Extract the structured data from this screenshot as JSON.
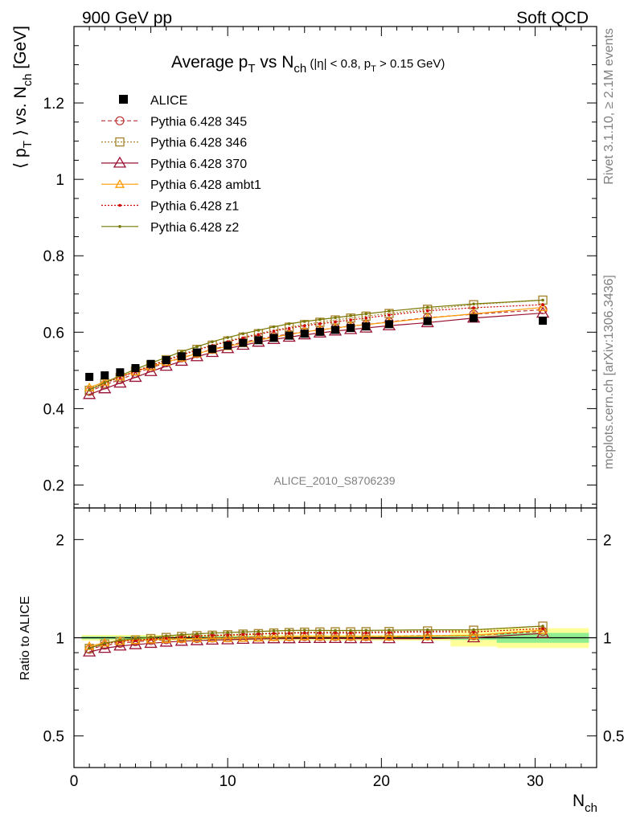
{
  "header": {
    "left": "900 GeV pp",
    "right": "Soft QCD"
  },
  "side": {
    "rivet": "Rivet 3.1.10, ≥ 2.1M events",
    "mcplots": "mcplots.cern.ch [arXiv:1306.3436]"
  },
  "colors": {
    "alice": "#000000",
    "p345": "#bb3333",
    "p346": "#aa8833",
    "p370": "#991133",
    "ambt1": "#ff9900",
    "z1": "#cc0000",
    "z2": "#777700",
    "band_inner": "#90ee90",
    "band_outer": "#ffff99"
  },
  "chart_data": {
    "type": "line",
    "title": {
      "main": "Average p",
      "sub1": "T",
      "mid": " vs N",
      "sub2": "ch",
      "cut_a": " (|η| < 0.8, p",
      "cut_sub": "T",
      "cut_b": " > 0.15 GeV)"
    },
    "ylabel": {
      "a": "⟨ p",
      "sub1": "T",
      "b": " ⟩ vs. N",
      "sub2": "ch",
      "c": " [GeV]"
    },
    "xlabel": {
      "a": "N",
      "sub": "ch"
    },
    "ratio_ylabel": "Ratio to ALICE",
    "watermark": "ALICE_2010_S8706239",
    "xlim": [
      0,
      34
    ],
    "ylim": [
      0.14,
      1.4
    ],
    "ratio_ylim": [
      0.4,
      2.5
    ],
    "xticks": [
      0,
      10,
      20,
      30
    ],
    "yticks": [
      0.2,
      0.4,
      0.6,
      0.8,
      1,
      1.2
    ],
    "ytick_labels": [
      "0.2",
      "0.4",
      "0.6",
      "0.8",
      "1",
      "1.2"
    ],
    "ratio_yticks": [
      0.5,
      1,
      2
    ],
    "ratio_ytick_labels": [
      "0.5",
      "1",
      "2"
    ],
    "legend_position": "top-left",
    "x": [
      1,
      2,
      3,
      4,
      5,
      6,
      7,
      8,
      9,
      10,
      11,
      12,
      13,
      14,
      15,
      16,
      17,
      18,
      19,
      20.5,
      23,
      26,
      30.5
    ],
    "alice": [
      0.483,
      0.487,
      0.495,
      0.506,
      0.517,
      0.527,
      0.537,
      0.547,
      0.556,
      0.565,
      0.572,
      0.579,
      0.585,
      0.591,
      0.596,
      0.601,
      0.606,
      0.611,
      0.615,
      0.621,
      0.629,
      0.637,
      0.63
    ],
    "series": [
      {
        "name": "Pythia 6.428 345",
        "key": "p345",
        "marker": "circle",
        "dash": "5,3",
        "values": [
          0.445,
          0.462,
          0.476,
          0.492,
          0.507,
          0.52,
          0.533,
          0.544,
          0.555,
          0.565,
          0.574,
          0.582,
          0.589,
          0.595,
          0.601,
          0.606,
          0.611,
          0.616,
          0.62,
          0.627,
          0.638,
          0.647,
          0.659
        ]
      },
      {
        "name": "Pythia 6.428 346",
        "key": "p346",
        "marker": "square",
        "dash": "2,2",
        "values": [
          0.448,
          0.466,
          0.482,
          0.498,
          0.514,
          0.528,
          0.542,
          0.555,
          0.566,
          0.577,
          0.587,
          0.596,
          0.605,
          0.613,
          0.62,
          0.626,
          0.632,
          0.637,
          0.642,
          0.649,
          0.66,
          0.672,
          0.684
        ]
      },
      {
        "name": "Pythia 6.428 370",
        "key": "p370",
        "marker": "triangle",
        "dash": "",
        "values": [
          0.437,
          0.452,
          0.467,
          0.482,
          0.497,
          0.511,
          0.524,
          0.536,
          0.547,
          0.557,
          0.566,
          0.574,
          0.581,
          0.587,
          0.593,
          0.598,
          0.603,
          0.607,
          0.611,
          0.617,
          0.625,
          0.637,
          0.65
        ]
      },
      {
        "name": "Pythia 6.428 ambt1",
        "key": "ambt1",
        "marker": "triangle-small",
        "dash": "",
        "values": [
          0.455,
          0.47,
          0.484,
          0.497,
          0.51,
          0.522,
          0.533,
          0.544,
          0.554,
          0.563,
          0.571,
          0.579,
          0.587,
          0.594,
          0.601,
          0.606,
          0.611,
          0.616,
          0.62,
          0.626,
          0.637,
          0.648,
          0.665
        ]
      },
      {
        "name": "Pythia 6.428 z1",
        "key": "z1",
        "marker": "dot",
        "dash": "2,2",
        "values": [
          0.45,
          0.467,
          0.482,
          0.497,
          0.512,
          0.526,
          0.54,
          0.553,
          0.565,
          0.575,
          0.585,
          0.594,
          0.603,
          0.61,
          0.617,
          0.622,
          0.627,
          0.632,
          0.637,
          0.645,
          0.656,
          0.664,
          0.672
        ]
      },
      {
        "name": "Pythia 6.428 z2",
        "key": "z2",
        "marker": "dot",
        "dash": "",
        "values": [
          0.449,
          0.468,
          0.486,
          0.503,
          0.519,
          0.534,
          0.549,
          0.562,
          0.575,
          0.586,
          0.596,
          0.605,
          0.614,
          0.622,
          0.628,
          0.633,
          0.638,
          0.643,
          0.648,
          0.655,
          0.665,
          0.674,
          0.684
        ]
      }
    ],
    "ratio_bands": [
      {
        "x0": 0.5,
        "x1": 24.5,
        "inner": 0.01,
        "outer": 0.02
      },
      {
        "x0": 24.5,
        "x1": 27.5,
        "inner": 0.015,
        "outer": 0.06
      },
      {
        "x0": 27.5,
        "x1": 33.5,
        "inner": 0.035,
        "outer": 0.07
      }
    ]
  }
}
